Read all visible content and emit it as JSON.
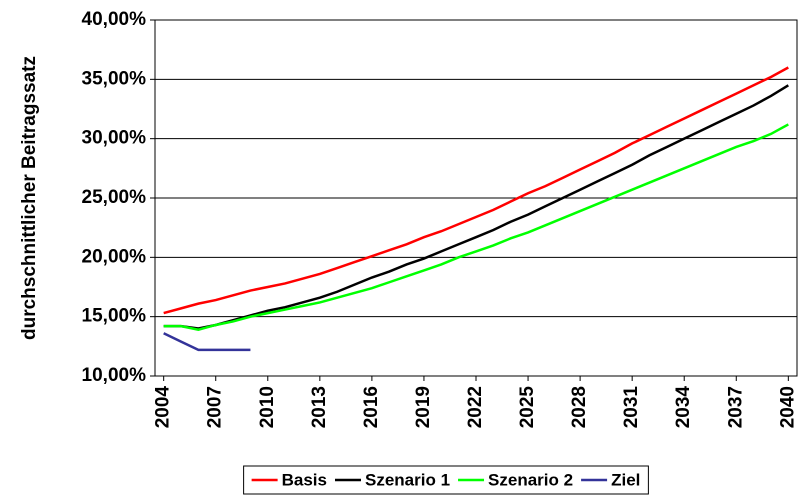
{
  "chart_data": {
    "type": "line",
    "y_label": "durchschnittlicher Beitragssatz",
    "x": [
      2004,
      2005,
      2006,
      2007,
      2008,
      2009,
      2010,
      2011,
      2012,
      2013,
      2014,
      2015,
      2016,
      2017,
      2018,
      2019,
      2020,
      2021,
      2022,
      2023,
      2024,
      2025,
      2026,
      2027,
      2028,
      2029,
      2030,
      2031,
      2032,
      2033,
      2034,
      2035,
      2036,
      2037,
      2038,
      2039,
      2040
    ],
    "xlim": [
      2003.5,
      2040.5
    ],
    "xticks": [
      2004,
      2007,
      2010,
      2013,
      2016,
      2019,
      2022,
      2025,
      2028,
      2031,
      2034,
      2037,
      2040
    ],
    "ylim": [
      10,
      40
    ],
    "yticks": [
      {
        "value": 10,
        "label": "10,00%"
      },
      {
        "value": 15,
        "label": "15,00%"
      },
      {
        "value": 20,
        "label": "20,00%"
      },
      {
        "value": 25,
        "label": "25,00%"
      },
      {
        "value": 30,
        "label": "30,00%"
      },
      {
        "value": 35,
        "label": "35,00%"
      },
      {
        "value": 40,
        "label": "40,00%"
      }
    ],
    "grid": true,
    "legend": "bottom",
    "series": [
      {
        "name": "Basis",
        "color": "#ff0000",
        "values": [
          15.3,
          15.7,
          16.1,
          16.4,
          16.8,
          17.2,
          17.5,
          17.8,
          18.2,
          18.6,
          19.1,
          19.6,
          20.1,
          20.6,
          21.1,
          21.7,
          22.2,
          22.8,
          23.4,
          24.0,
          24.7,
          25.4,
          26.0,
          26.7,
          27.4,
          28.1,
          28.8,
          29.6,
          30.3,
          31.0,
          31.7,
          32.4,
          33.1,
          33.8,
          34.5,
          35.2,
          36.0
        ]
      },
      {
        "name": "Szenario 1",
        "color": "#000000",
        "values": [
          14.2,
          14.2,
          14.0,
          14.3,
          14.7,
          15.1,
          15.5,
          15.8,
          16.2,
          16.6,
          17.1,
          17.7,
          18.3,
          18.8,
          19.4,
          19.9,
          20.5,
          21.1,
          21.7,
          22.3,
          23.0,
          23.6,
          24.3,
          25.0,
          25.7,
          26.4,
          27.1,
          27.8,
          28.6,
          29.3,
          30.0,
          30.7,
          31.4,
          32.1,
          32.8,
          33.6,
          34.5
        ]
      },
      {
        "name": "Szenario 2",
        "color": "#00ff00",
        "values": [
          14.2,
          14.2,
          13.9,
          14.3,
          14.6,
          15.0,
          15.3,
          15.6,
          15.9,
          16.2,
          16.6,
          17.0,
          17.4,
          17.9,
          18.4,
          18.9,
          19.4,
          20.0,
          20.5,
          21.0,
          21.6,
          22.1,
          22.7,
          23.3,
          23.9,
          24.5,
          25.1,
          25.7,
          26.3,
          26.9,
          27.5,
          28.1,
          28.7,
          29.3,
          29.8,
          30.4,
          31.2
        ]
      },
      {
        "name": "Ziel",
        "color": "#333399",
        "values": [
          13.6,
          12.9,
          12.2,
          12.2,
          12.2,
          12.2,
          null,
          null,
          null,
          null,
          null,
          null,
          null,
          null,
          null,
          null,
          null,
          null,
          null,
          null,
          null,
          null,
          null,
          null,
          null,
          null,
          null,
          null,
          null,
          null,
          null,
          null,
          null,
          null,
          null,
          null,
          null
        ]
      }
    ]
  }
}
